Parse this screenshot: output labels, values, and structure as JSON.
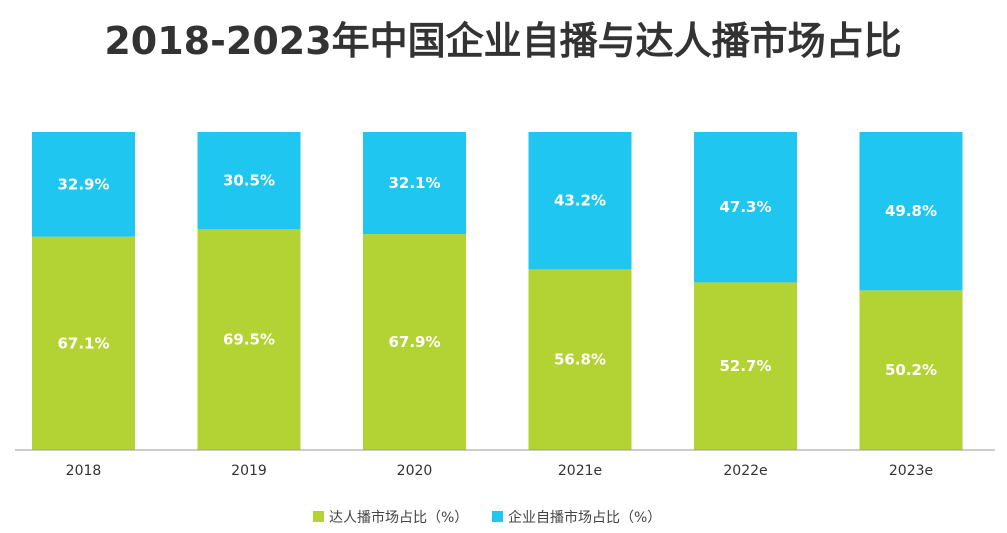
{
  "chart_data": {
    "type": "bar",
    "stacked": true,
    "title": "2018-2023年中国企业自播与达人播市场占比",
    "categories": [
      "2018",
      "2019",
      "2020",
      "2021e",
      "2022e",
      "2023e"
    ],
    "series": [
      {
        "name": "达人播市场占比（%）",
        "color": "#b3d334",
        "values": [
          67.1,
          69.5,
          67.9,
          56.8,
          52.7,
          50.2
        ],
        "labels": [
          "67.1%",
          "69.5%",
          "67.9%",
          "56.8%",
          "52.7%",
          "50.2%"
        ]
      },
      {
        "name": "企业自播市场占比（%）",
        "color": "#1ec6f0",
        "values": [
          32.9,
          30.5,
          32.1,
          43.2,
          47.3,
          49.8
        ],
        "labels": [
          "32.9%",
          "30.5%",
          "32.1%",
          "43.2%",
          "47.3%",
          "49.8%"
        ]
      }
    ],
    "ylim": [
      0,
      100
    ],
    "grid": false,
    "legend_position": "bottom"
  }
}
